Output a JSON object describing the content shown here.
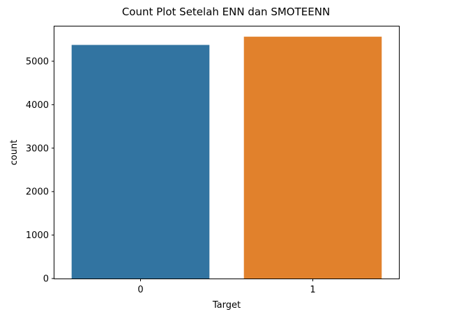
{
  "chart_data": {
    "type": "bar",
    "title": "Count Plot Setelah ENN dan SMOTEENN",
    "xlabel": "Target",
    "ylabel": "count",
    "categories": [
      "0",
      "1"
    ],
    "values": [
      5375,
      5565
    ],
    "colors": [
      "#3274a1",
      "#e1812c"
    ],
    "ylim": [
      0,
      5800
    ],
    "yticks": [
      0,
      1000,
      2000,
      3000,
      4000,
      5000
    ],
    "grid": false
  }
}
